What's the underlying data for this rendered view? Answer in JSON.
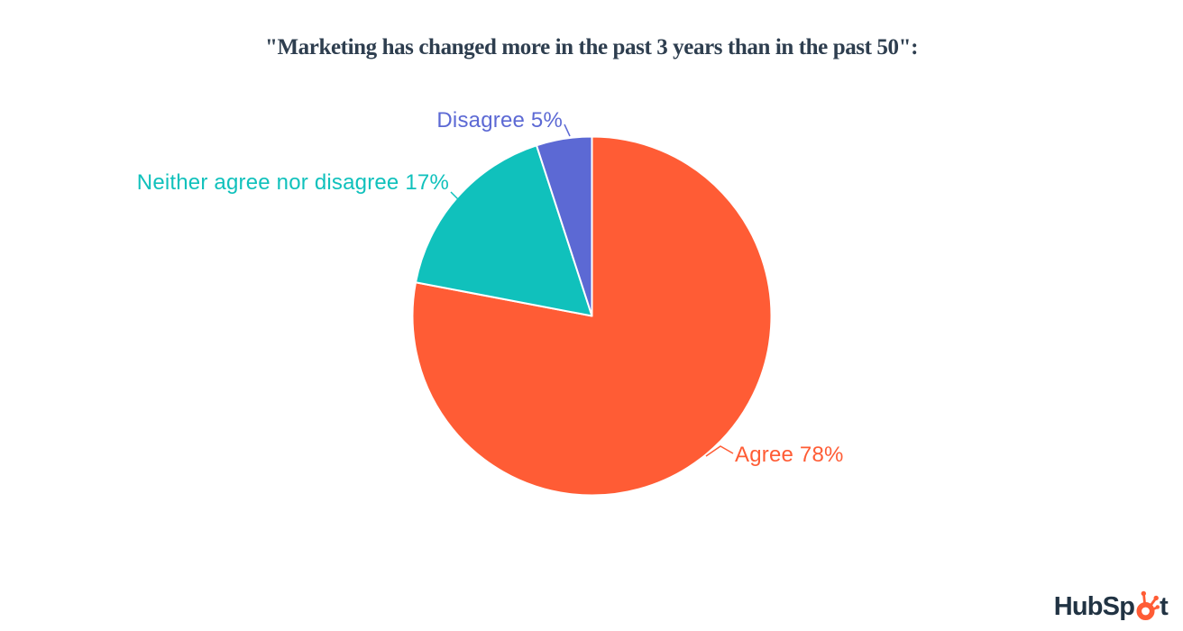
{
  "title": {
    "text": "\"Marketing has changed more in the past 3 years than in the past 50\":",
    "color": "#2e3e4f"
  },
  "chart_data": {
    "type": "pie",
    "title": "\"Marketing has changed more in the past 3 years than in the past 50\":",
    "unit": "%",
    "slices": [
      {
        "id": "agree",
        "label": "Agree",
        "value": 78,
        "display": "Agree 78%",
        "color": "#ff5c35"
      },
      {
        "id": "neither",
        "label": "Neither agree nor disagree",
        "value": 17,
        "display": "Neither agree nor disagree 17%",
        "color": "#10c1bc"
      },
      {
        "id": "disagree",
        "label": "Disagree",
        "value": 5,
        "display": "Disagree 5%",
        "color": "#5c69d4"
      }
    ],
    "start_angle": "top",
    "direction": "clockwise",
    "slice_border_color": "#ffffff",
    "legend_position": "callout-labels",
    "background": "#ffffff"
  },
  "branding": {
    "logo_name": "HubSpot",
    "logo_text_before_sprocket": "HubSp",
    "logo_text_after_sprocket": "t",
    "wordmark_color": "#213343",
    "sprocket_color": "#ff5c35"
  }
}
